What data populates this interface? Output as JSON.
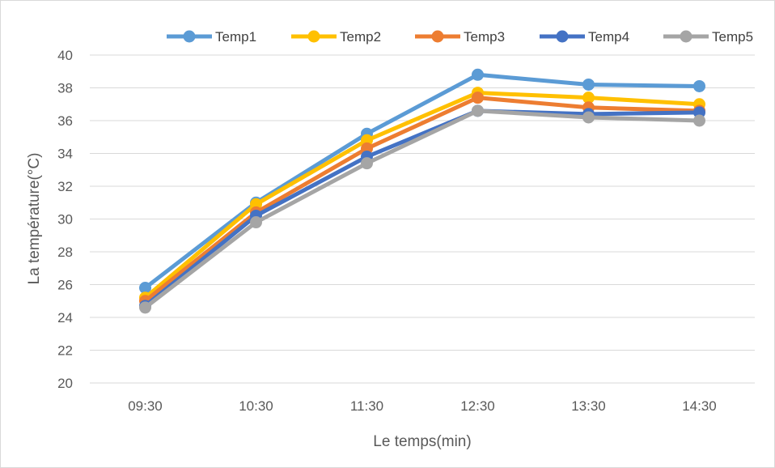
{
  "chart_data": {
    "type": "line",
    "title": "",
    "xlabel": "Le temps(min)",
    "ylabel": "La température(°C)",
    "categories": [
      "09:30",
      "10:30",
      "11:30",
      "12:30",
      "13:30",
      "14:30"
    ],
    "ylim": [
      20,
      40
    ],
    "y_ticks": [
      "20",
      "22",
      "24",
      "26",
      "28",
      "30",
      "32",
      "34",
      "36",
      "38",
      "40"
    ],
    "grid": true,
    "legend_position": "top",
    "series": [
      {
        "name": "Temp1",
        "color": "#5B9BD5",
        "values": [
          25.8,
          31.0,
          35.2,
          38.8,
          38.2,
          38.1
        ]
      },
      {
        "name": "Temp2",
        "color": "#FFC000",
        "values": [
          25.2,
          30.9,
          34.8,
          37.7,
          37.4,
          37.0
        ]
      },
      {
        "name": "Temp3",
        "color": "#ED7D31",
        "values": [
          25.0,
          30.4,
          34.3,
          37.4,
          36.8,
          36.6
        ]
      },
      {
        "name": "Temp4",
        "color": "#4472C4",
        "values": [
          24.7,
          30.2,
          33.8,
          36.6,
          36.4,
          36.5
        ]
      },
      {
        "name": "Temp5",
        "color": "#A5A5A5",
        "values": [
          24.6,
          29.8,
          33.4,
          36.6,
          36.2,
          36.0
        ]
      }
    ]
  }
}
